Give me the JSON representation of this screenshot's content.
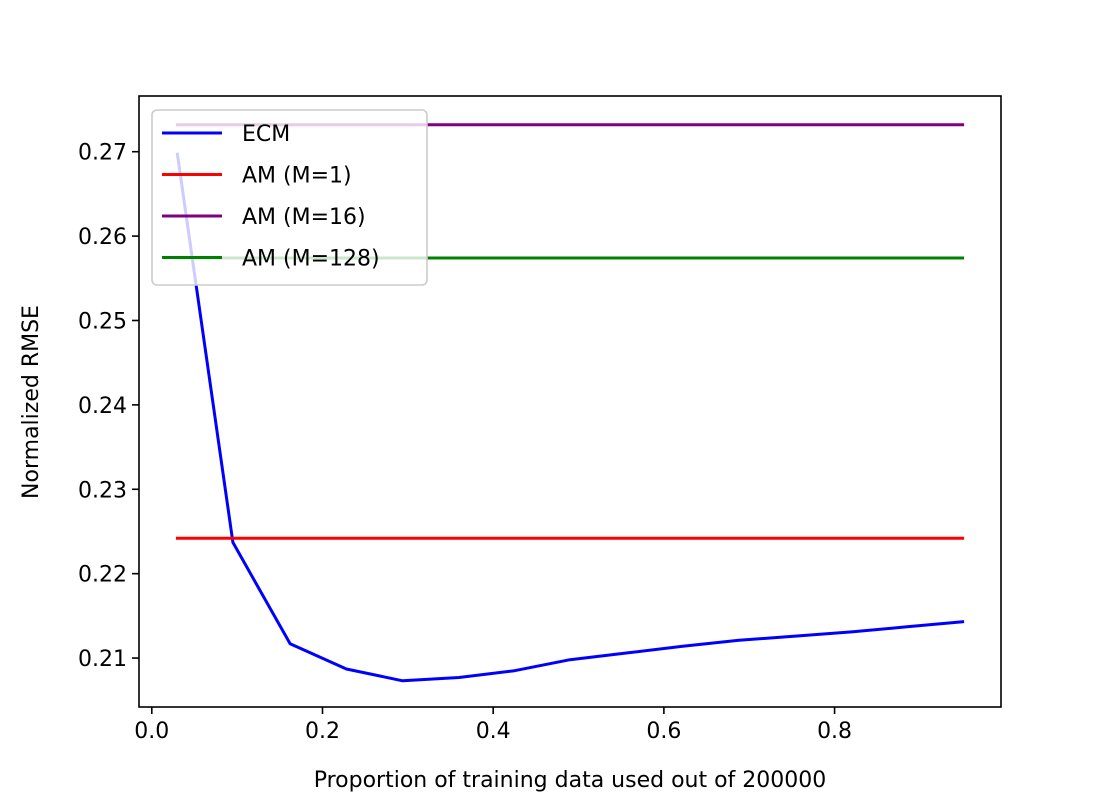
{
  "chart_data": {
    "type": "line",
    "title": "",
    "xlabel": "Proportion of training data used out of 200000",
    "ylabel": "Normalized RMSE",
    "xlim": [
      -0.015,
      0.995
    ],
    "ylim": [
      0.2042,
      0.2766
    ],
    "xticks": [
      0.0,
      0.2,
      0.4,
      0.6,
      0.8
    ],
    "xtick_labels": [
      "0.0",
      "0.2",
      "0.4",
      "0.6",
      "0.8"
    ],
    "yticks": [
      0.21,
      0.22,
      0.23,
      0.24,
      0.25,
      0.26,
      0.27
    ],
    "ytick_labels": [
      "0.21",
      "0.22",
      "0.23",
      "0.24",
      "0.25",
      "0.26",
      "0.27"
    ],
    "grid": false,
    "legend_position": "upper-left",
    "series": [
      {
        "name": "ECM",
        "color": "#0000ff",
        "x": [
          0.03,
          0.095,
          0.162,
          0.228,
          0.294,
          0.36,
          0.425,
          0.49,
          0.556,
          0.622,
          0.688,
          0.754,
          0.82,
          0.885,
          0.95
        ],
        "y": [
          0.2697,
          0.2237,
          0.2117,
          0.2087,
          0.2073,
          0.2077,
          0.2085,
          0.2098,
          0.2106,
          0.2114,
          0.2121,
          0.2126,
          0.2131,
          0.2137,
          0.2143
        ]
      },
      {
        "name": "AM (M=1)",
        "color": "#ff0000",
        "x": [
          0.03,
          0.95
        ],
        "y": [
          0.2242,
          0.2242
        ]
      },
      {
        "name": "AM (M=16)",
        "color": "#800080",
        "x": [
          0.03,
          0.95
        ],
        "y": [
          0.2732,
          0.2732
        ]
      },
      {
        "name": "AM (M=128)",
        "color": "#008000",
        "x": [
          0.03,
          0.95
        ],
        "y": [
          0.2574,
          0.2574
        ]
      }
    ]
  }
}
